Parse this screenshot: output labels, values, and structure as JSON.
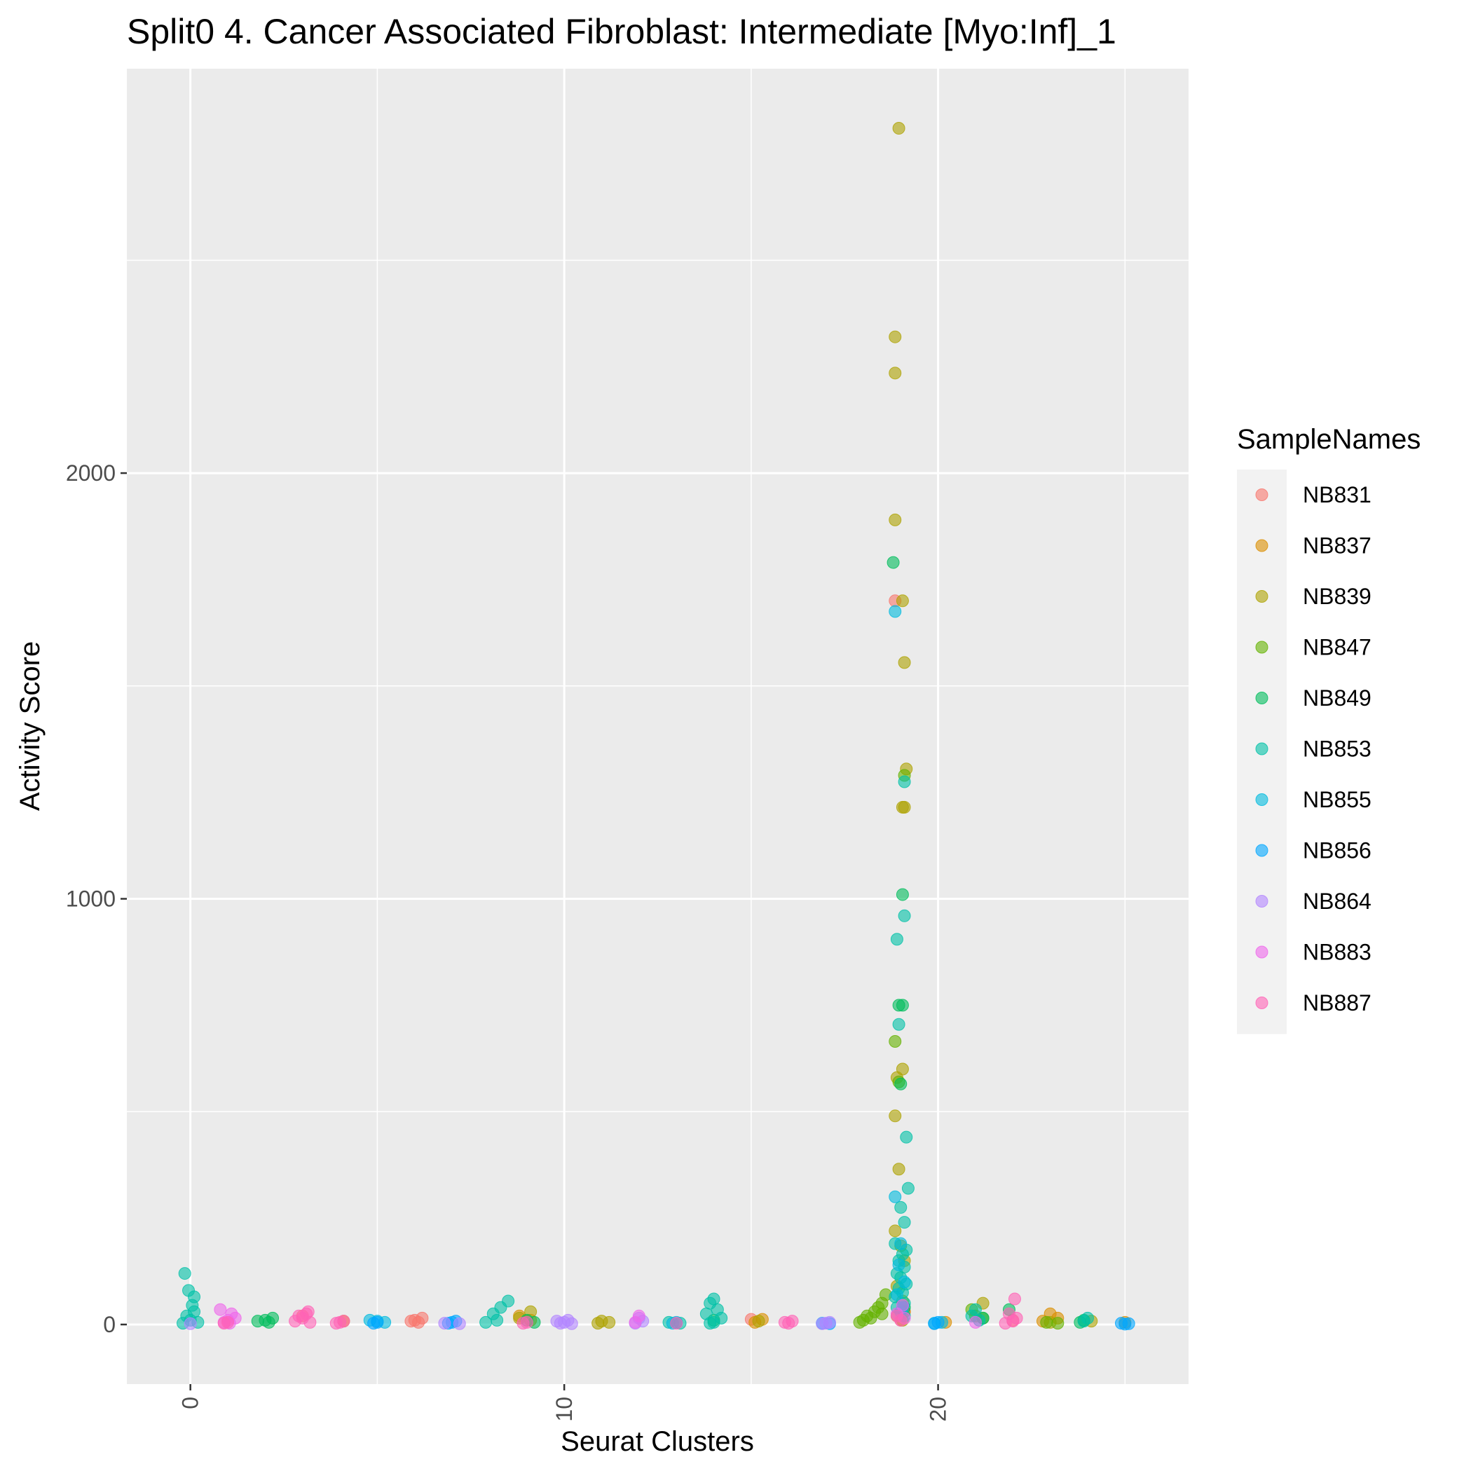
{
  "chart_data": {
    "type": "scatter",
    "title": "Split0 4. Cancer Associated Fibroblast: Intermediate [Myo:Inf]_1",
    "xlabel": "Seurat Clusters",
    "ylabel": "Activity Score",
    "xlim": [
      -1.7,
      26.7
    ],
    "ylim": [
      -140,
      2950
    ],
    "x_ticks": [
      0,
      10,
      20
    ],
    "x_tick_labels": [
      "0",
      "10",
      "20"
    ],
    "y_ticks": [
      0,
      1000,
      2000
    ],
    "y_tick_labels": [
      "0",
      "1000",
      "2000"
    ],
    "grid": true,
    "background": "#ebebeb",
    "legend": {
      "title": "SampleNames",
      "position": "right"
    },
    "series": [
      {
        "name": "NB831",
        "color": "#F8766D",
        "points": [
          [
            6,
            10
          ],
          [
            6.2,
            15
          ],
          [
            6.1,
            5
          ],
          [
            5.9,
            8
          ],
          [
            19,
            10
          ],
          [
            18.85,
            1700
          ],
          [
            19.1,
            30
          ],
          [
            3,
            20
          ],
          [
            15,
            12
          ],
          [
            22,
            10
          ]
        ]
      },
      {
        "name": "NB837",
        "color": "#DB8E00",
        "points": [
          [
            15.3,
            12
          ],
          [
            15.1,
            5
          ],
          [
            23,
            25
          ],
          [
            23.2,
            15
          ],
          [
            22.8,
            8
          ],
          [
            8.8,
            20
          ],
          [
            9.1,
            10
          ],
          [
            4.1,
            8
          ],
          [
            25,
            5
          ],
          [
            20.2,
            5
          ],
          [
            19.1,
            30
          ]
        ]
      },
      {
        "name": "NB839",
        "color": "#AEA200",
        "points": [
          [
            18.95,
            2810
          ],
          [
            18.85,
            2320
          ],
          [
            18.85,
            2235
          ],
          [
            18.85,
            1890
          ],
          [
            19.05,
            1700
          ],
          [
            19.1,
            1555
          ],
          [
            19.15,
            1305
          ],
          [
            19.05,
            1215
          ],
          [
            19.1,
            1215
          ],
          [
            18.9,
            580
          ],
          [
            19.05,
            600
          ],
          [
            18.85,
            490
          ],
          [
            18.95,
            365
          ],
          [
            18.85,
            220
          ],
          [
            19,
            185
          ],
          [
            19.1,
            150
          ],
          [
            18.9,
            90
          ],
          [
            19.05,
            55
          ],
          [
            9.1,
            30
          ],
          [
            8.8,
            15
          ],
          [
            11,
            8
          ],
          [
            11.2,
            5
          ],
          [
            10.9,
            3
          ],
          [
            15.2,
            8
          ],
          [
            23,
            5
          ],
          [
            21.2,
            50
          ],
          [
            18.9,
            20
          ],
          [
            19.05,
            10
          ],
          [
            24.1,
            8
          ]
        ]
      },
      {
        "name": "NB847",
        "color": "#64B200",
        "points": [
          [
            18.6,
            70
          ],
          [
            18.5,
            50
          ],
          [
            18.3,
            30
          ],
          [
            18.1,
            20
          ],
          [
            18,
            10
          ],
          [
            17.9,
            5
          ],
          [
            18.2,
            15
          ],
          [
            18.4,
            40
          ],
          [
            18.5,
            25
          ],
          [
            19.1,
            1290
          ],
          [
            18.85,
            665
          ],
          [
            18.95,
            570
          ],
          [
            22.9,
            5
          ],
          [
            23.2,
            3
          ],
          [
            21,
            20
          ],
          [
            21.2,
            15
          ],
          [
            20.9,
            35
          ]
        ]
      },
      {
        "name": "NB849",
        "color": "#00BD5C",
        "points": [
          [
            18.8,
            1790
          ],
          [
            19.05,
            1010
          ],
          [
            18.95,
            750
          ],
          [
            19.05,
            750
          ],
          [
            19,
            565
          ],
          [
            19.1,
            40
          ],
          [
            2,
            10
          ],
          [
            2.2,
            15
          ],
          [
            2.1,
            5
          ],
          [
            1.8,
            8
          ],
          [
            9,
            10
          ],
          [
            9.2,
            5
          ],
          [
            21.9,
            35
          ],
          [
            21.2,
            15
          ],
          [
            23.9,
            10
          ],
          [
            23.8,
            5
          ],
          [
            14,
            10
          ]
        ]
      },
      {
        "name": "NB853",
        "color": "#00C1A7",
        "points": [
          [
            -0.15,
            120
          ],
          [
            -0.05,
            80
          ],
          [
            0.1,
            65
          ],
          [
            0.05,
            45
          ],
          [
            0.1,
            30
          ],
          [
            -0.1,
            20
          ],
          [
            0,
            10
          ],
          [
            0.2,
            5
          ],
          [
            -0.2,
            3
          ],
          [
            8.5,
            55
          ],
          [
            8.3,
            40
          ],
          [
            8.1,
            25
          ],
          [
            8.2,
            10
          ],
          [
            7.9,
            5
          ],
          [
            14,
            60
          ],
          [
            13.9,
            50
          ],
          [
            14.1,
            35
          ],
          [
            13.8,
            25
          ],
          [
            14.2,
            15
          ],
          [
            14,
            5
          ],
          [
            13.9,
            3
          ],
          [
            19.1,
            1275
          ],
          [
            19.1,
            960
          ],
          [
            18.9,
            905
          ],
          [
            18.95,
            705
          ],
          [
            19.15,
            440
          ],
          [
            19.2,
            320
          ],
          [
            19,
            275
          ],
          [
            19.1,
            240
          ],
          [
            18.85,
            190
          ],
          [
            19.15,
            175
          ],
          [
            19.05,
            165
          ],
          [
            18.95,
            150
          ],
          [
            19.1,
            135
          ],
          [
            18.9,
            120
          ],
          [
            19,
            110
          ],
          [
            19.15,
            95
          ],
          [
            18.95,
            85
          ],
          [
            19.05,
            75
          ],
          [
            18.85,
            65
          ],
          [
            19.1,
            50
          ],
          [
            18.9,
            40
          ],
          [
            19,
            30
          ],
          [
            19.1,
            20
          ],
          [
            21,
            35
          ],
          [
            20.9,
            20
          ],
          [
            21.1,
            10
          ],
          [
            24,
            15
          ],
          [
            23.9,
            8
          ],
          [
            12.8,
            5
          ],
          [
            13.1,
            3
          ]
        ]
      },
      {
        "name": "NB855",
        "color": "#00BADE",
        "points": [
          [
            18.85,
            1675
          ],
          [
            18.85,
            300
          ],
          [
            19,
            190
          ],
          [
            18.95,
            140
          ],
          [
            19.1,
            100
          ],
          [
            18.9,
            70
          ],
          [
            19.05,
            40
          ],
          [
            4.8,
            10
          ],
          [
            5,
            8
          ],
          [
            5.2,
            5
          ],
          [
            13,
            5
          ],
          [
            12.9,
            3
          ],
          [
            20.1,
            5
          ],
          [
            19.9,
            3
          ]
        ]
      },
      {
        "name": "NB856",
        "color": "#00A6FF",
        "points": [
          [
            5,
            5
          ],
          [
            4.9,
            3
          ],
          [
            7,
            5
          ],
          [
            6.9,
            3
          ],
          [
            7.1,
            8
          ],
          [
            16.9,
            3
          ],
          [
            17.1,
            2
          ],
          [
            20,
            5
          ],
          [
            19.9,
            2
          ],
          [
            24.9,
            3
          ],
          [
            25.1,
            2
          ],
          [
            25,
            1
          ]
        ]
      },
      {
        "name": "NB864",
        "color": "#B385FF",
        "points": [
          [
            10,
            5
          ],
          [
            10.1,
            10
          ],
          [
            9.9,
            3
          ],
          [
            9.8,
            8
          ],
          [
            10.2,
            2
          ],
          [
            12,
            15
          ],
          [
            12.1,
            8
          ],
          [
            11.9,
            3
          ],
          [
            17,
            3
          ],
          [
            16.9,
            2
          ],
          [
            17.1,
            5
          ],
          [
            0,
            2
          ],
          [
            6.8,
            3
          ],
          [
            7.2,
            2
          ]
        ]
      },
      {
        "name": "NB883",
        "color": "#EF67EB",
        "points": [
          [
            0.8,
            35
          ],
          [
            1.1,
            25
          ],
          [
            1.2,
            15
          ],
          [
            1,
            10
          ],
          [
            0.9,
            5
          ],
          [
            1.05,
            3
          ],
          [
            18.9,
            25
          ],
          [
            19.05,
            45
          ],
          [
            19.1,
            15
          ],
          [
            21,
            5
          ],
          [
            12,
            20
          ],
          [
            11.9,
            5
          ]
        ]
      },
      {
        "name": "NB887",
        "color": "#FF63B6",
        "points": [
          [
            2.9,
            20
          ],
          [
            3.1,
            25
          ],
          [
            3,
            15
          ],
          [
            2.8,
            8
          ],
          [
            3.2,
            5
          ],
          [
            3.15,
            30
          ],
          [
            4,
            5
          ],
          [
            3.9,
            3
          ],
          [
            4.1,
            8
          ],
          [
            9,
            5
          ],
          [
            8.9,
            3
          ],
          [
            13,
            3
          ],
          [
            15.9,
            5
          ],
          [
            16,
            3
          ],
          [
            16.1,
            8
          ],
          [
            18.9,
            20
          ],
          [
            19,
            10
          ],
          [
            22.05,
            60
          ],
          [
            21.9,
            25
          ],
          [
            22.1,
            15
          ],
          [
            22,
            8
          ],
          [
            21.8,
            3
          ],
          [
            1,
            5
          ],
          [
            0.9,
            3
          ]
        ]
      }
    ]
  }
}
